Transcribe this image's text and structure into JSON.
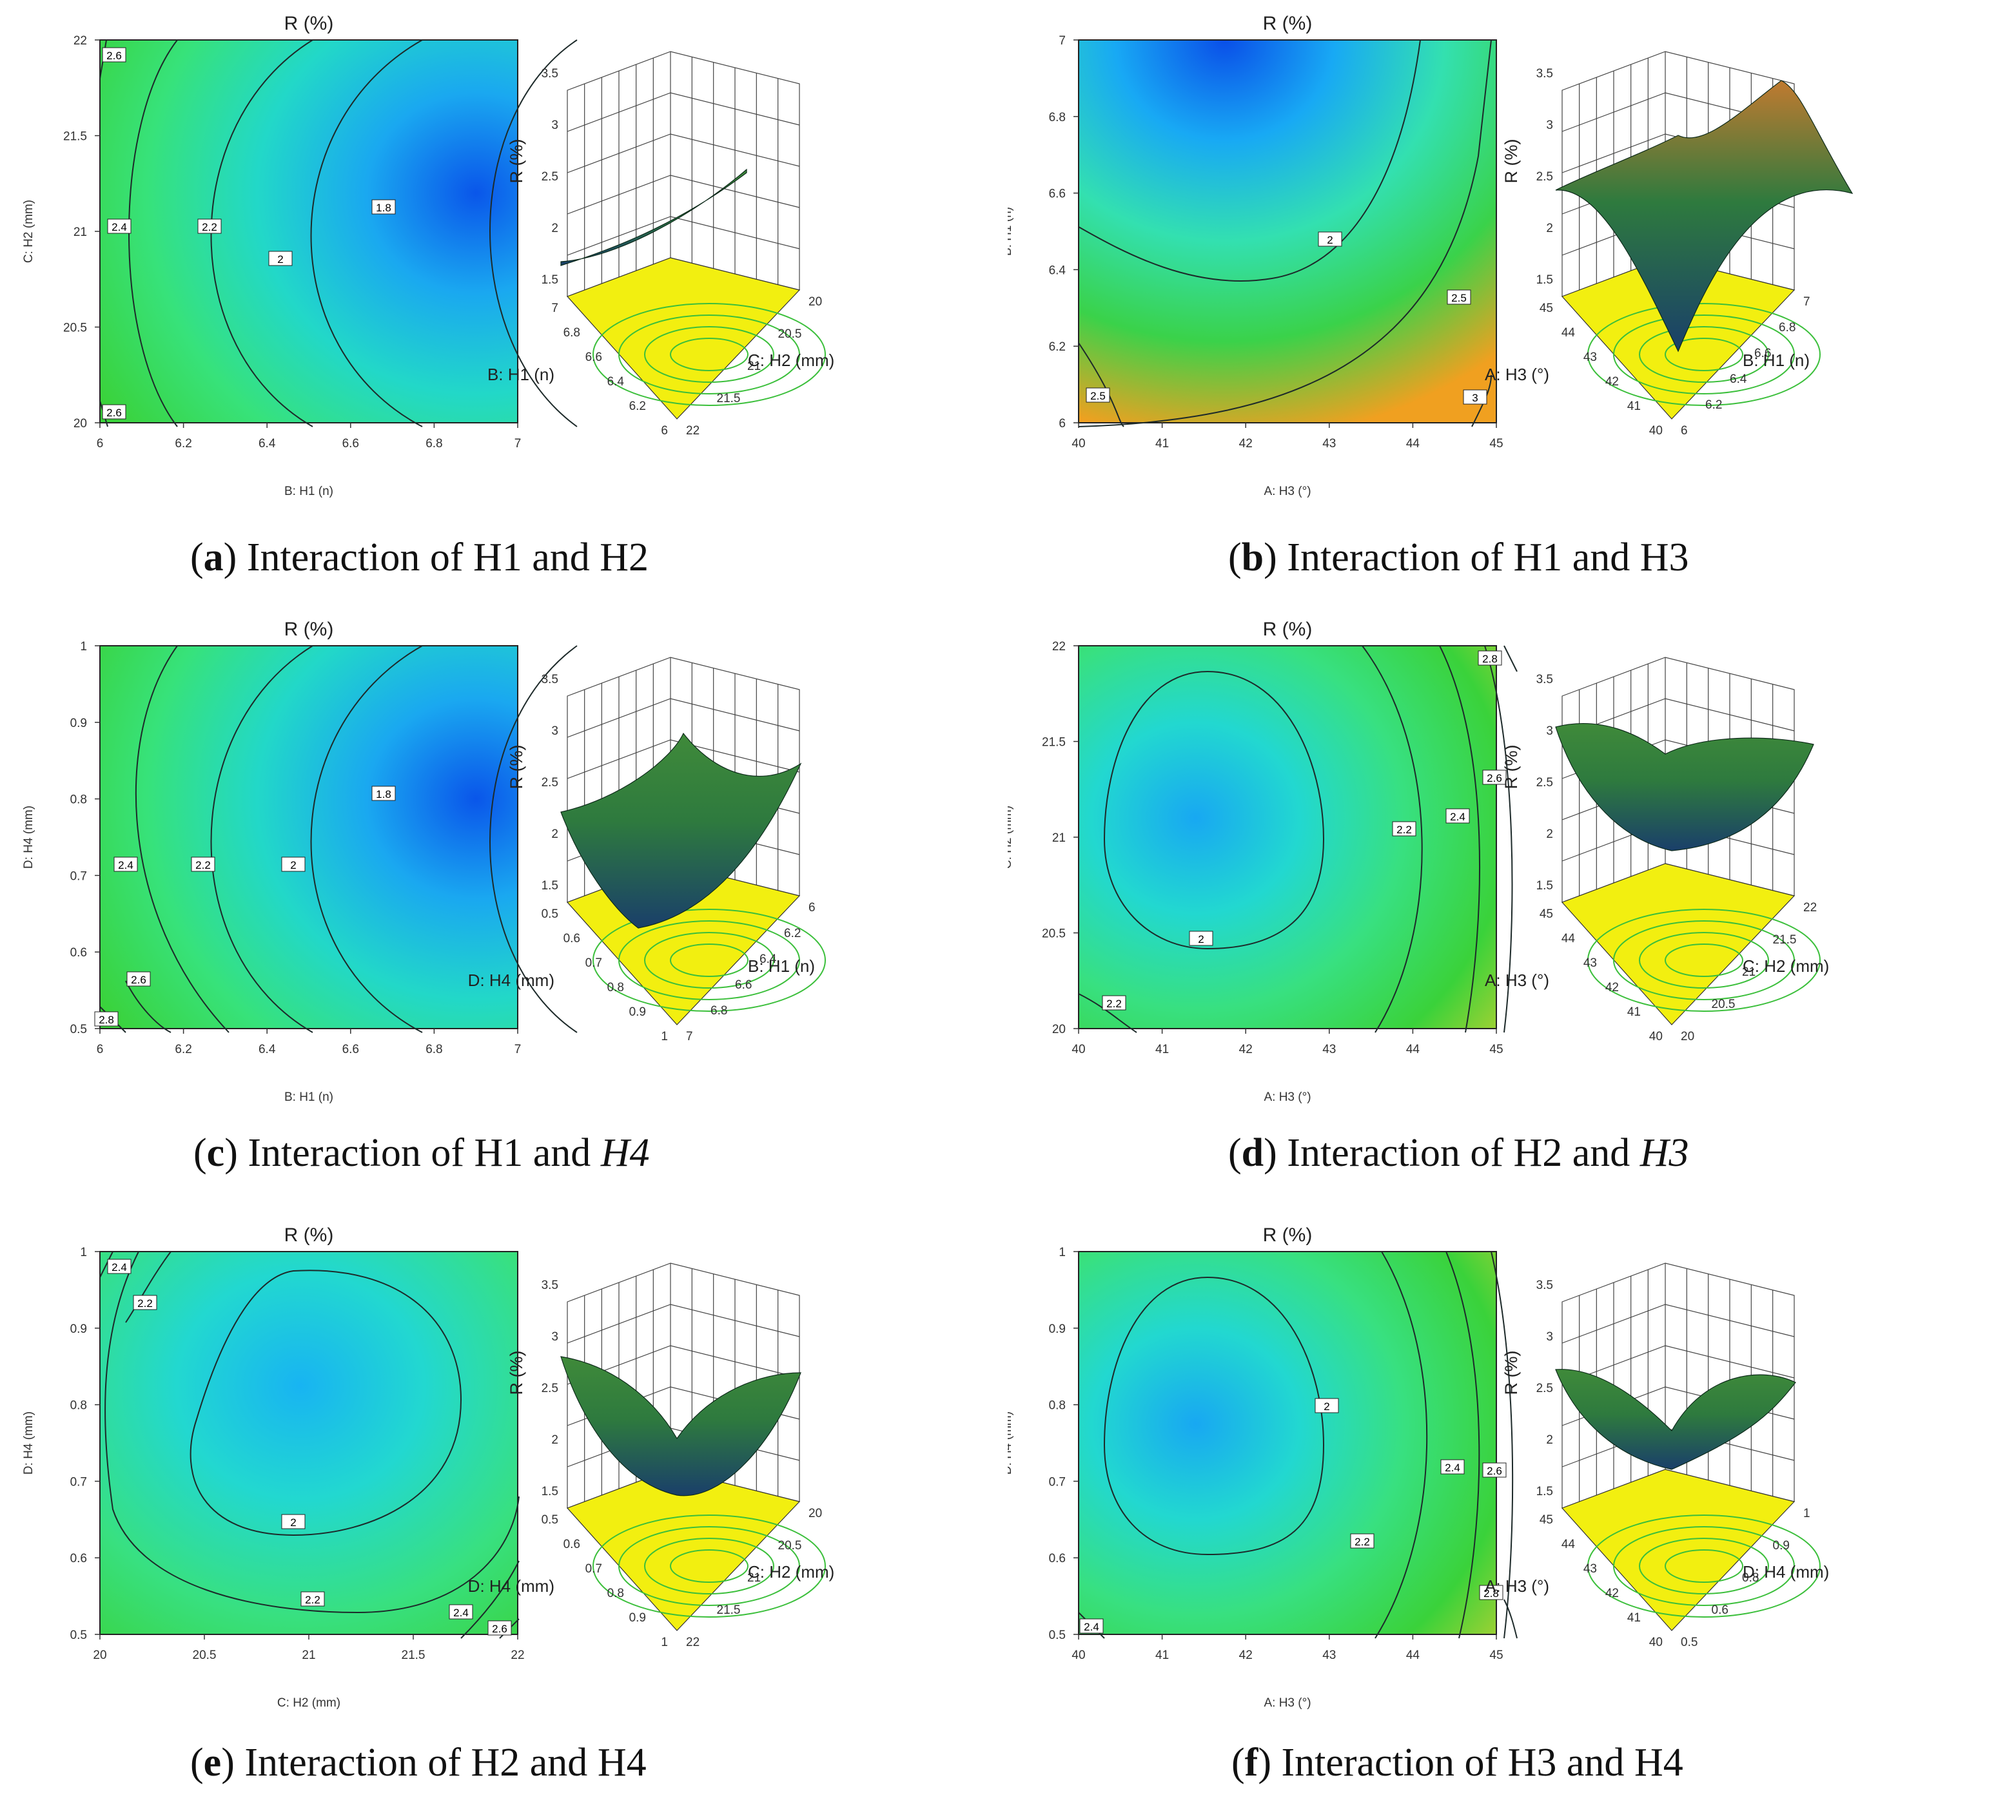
{
  "figure": {
    "panels": [
      {
        "id": "a",
        "caption": {
          "letter": "a",
          "text_before": " Interaction of H1 and ",
          "second": "H2",
          "second_italic": false
        },
        "chart_data": {
          "type": "contour",
          "title": "R (%)",
          "xlabel": "B: H1 (n)",
          "ylabel": "C: H2 (mm)",
          "xlim": [
            6,
            7
          ],
          "ylim": [
            20,
            22
          ],
          "xticks": [
            "6",
            "6.2",
            "6.4",
            "6.6",
            "6.8",
            "7"
          ],
          "yticks": [
            "20",
            "20.5",
            "21",
            "21.5",
            "22"
          ],
          "contour_levels": [
            "1.8",
            "2",
            "2.2",
            "2.4",
            "2.6",
            "2.6"
          ],
          "gradient": [
            "#3ad23a",
            "#37e27a",
            "#22d8c8",
            "#1aa8f0",
            "#0a56ea"
          ],
          "surface": {
            "zlabel": "R (%)",
            "zticks": [
              "1.5",
              "2",
              "2.5",
              "3",
              "3.5"
            ],
            "axis_left_label": "B: H1 (n)",
            "axis_left_ticks": [
              "7",
              "6.8",
              "6.6",
              "6.4",
              "6.2",
              "6"
            ],
            "axis_right_label": "C: H2 (mm)",
            "axis_right_ticks": [
              "22",
              "21.5",
              "21",
              "20.5",
              "20"
            ]
          }
        }
      },
      {
        "id": "b",
        "caption": {
          "letter": "b",
          "text_before": " Interaction of H1 and ",
          "second": "H3",
          "second_italic": false
        },
        "chart_data": {
          "type": "contour",
          "title": "R (%)",
          "xlabel": "A: H3  (°)",
          "ylabel": "B: H1 (n)",
          "xlim": [
            40,
            45
          ],
          "ylim": [
            6,
            7
          ],
          "xticks": [
            "40",
            "41",
            "42",
            "43",
            "44",
            "45"
          ],
          "yticks": [
            "6",
            "6.2",
            "6.4",
            "6.6",
            "6.8",
            "7"
          ],
          "contour_levels": [
            "2",
            "2.5",
            "2.5",
            "3"
          ],
          "gradient": [
            "#0a4fe8",
            "#18a9f4",
            "#33e0b0",
            "#3ad24a",
            "#f0a020"
          ],
          "surface": {
            "zlabel": "R (%)",
            "zticks": [
              "1.5",
              "2",
              "2.5",
              "3",
              "3.5"
            ],
            "axis_left_label": "A: H3  (°)",
            "axis_left_ticks": [
              "45",
              "44",
              "43",
              "42",
              "41",
              "40"
            ],
            "axis_right_label": "B: H1 (n)",
            "axis_right_ticks": [
              "6",
              "6.2",
              "6.4",
              "6.6",
              "6.8",
              "7"
            ]
          }
        }
      },
      {
        "id": "c",
        "caption": {
          "letter": "c",
          "text_before": " Interaction of H1 and ",
          "second": "H4",
          "second_italic": true
        },
        "chart_data": {
          "type": "contour",
          "title": "R (%)",
          "xlabel": "B: H1 (n)",
          "ylabel": "D: H4 (mm)",
          "xlim": [
            6,
            7
          ],
          "ylim": [
            0.5,
            1
          ],
          "xticks": [
            "6",
            "6.2",
            "6.4",
            "6.6",
            "6.8",
            "7"
          ],
          "yticks": [
            "0.5",
            "0.6",
            "0.7",
            "0.8",
            "0.9",
            "1"
          ],
          "contour_levels": [
            "1.8",
            "2",
            "2.2",
            "2.4",
            "2.6",
            "2.8"
          ],
          "gradient": [
            "#3ad23a",
            "#37e27a",
            "#22d8c8",
            "#1aa8f0",
            "#0a56ea"
          ],
          "surface": {
            "zlabel": "R (%)",
            "zticks": [
              "1.5",
              "2",
              "2.5",
              "3",
              "3.5"
            ],
            "axis_left_label": "D: H4 (mm)",
            "axis_left_ticks": [
              "0.5",
              "0.6",
              "0.7",
              "0.8",
              "0.9",
              "1"
            ],
            "axis_right_label": "B: H1 (n)",
            "axis_right_ticks": [
              "7",
              "6.8",
              "6.6",
              "6.4",
              "6.2",
              "6"
            ]
          }
        }
      },
      {
        "id": "d",
        "caption": {
          "letter": "d",
          "text_before": " Interaction of H2 and ",
          "second": "H3",
          "second_italic": true
        },
        "chart_data": {
          "type": "contour",
          "title": "R (%)",
          "xlabel": "A: H3  (°)",
          "ylabel": "C: H2 (mm)",
          "xlim": [
            40,
            45
          ],
          "ylim": [
            20,
            22
          ],
          "xticks": [
            "40",
            "41",
            "42",
            "43",
            "44",
            "45"
          ],
          "yticks": [
            "20",
            "20.5",
            "21",
            "21.5",
            "22"
          ],
          "contour_levels": [
            "2",
            "2.2",
            "2.2",
            "2.4",
            "2.6",
            "2.8"
          ],
          "gradient": [
            "#18a8f2",
            "#22d8d0",
            "#38e080",
            "#3ad23a",
            "#d6d030"
          ],
          "surface": {
            "zlabel": "R (%)",
            "zticks": [
              "1.5",
              "2",
              "2.5",
              "3",
              "3.5"
            ],
            "axis_left_label": "A: H3  (°)",
            "axis_left_ticks": [
              "45",
              "44",
              "43",
              "42",
              "41",
              "40"
            ],
            "axis_right_label": "C: H2 (mm)",
            "axis_right_ticks": [
              "20",
              "20.5",
              "21",
              "21.5",
              "22"
            ]
          }
        }
      },
      {
        "id": "e",
        "caption": {
          "letter": "e",
          "text_before": " Interaction of H2 and ",
          "second": "H4",
          "second_italic": false
        },
        "chart_data": {
          "type": "contour",
          "title": "R (%)",
          "xlabel": "C: H2  (mm)",
          "ylabel": "D: H4  (mm)",
          "xlim": [
            20,
            22
          ],
          "ylim": [
            0.5,
            1
          ],
          "xticks": [
            "20",
            "20.5",
            "21",
            "21.5",
            "22"
          ],
          "yticks": [
            "0.5",
            "0.6",
            "0.7",
            "0.8",
            "0.9",
            "1"
          ],
          "contour_levels": [
            "2",
            "2.2",
            "2.2",
            "2.4",
            "2.4",
            "2.6"
          ],
          "gradient": [
            "#18b4f2",
            "#22d8d0",
            "#38e080",
            "#3ad23a"
          ],
          "surface": {
            "zlabel": "R (%)",
            "zticks": [
              "1.5",
              "2",
              "2.5",
              "3",
              "3.5"
            ],
            "axis_left_label": "D: H4  (mm)",
            "axis_left_ticks": [
              "0.5",
              "0.6",
              "0.7",
              "0.8",
              "0.9",
              "1"
            ],
            "axis_right_label": "C: H2  (mm)",
            "axis_right_ticks": [
              "22",
              "21.5",
              "21",
              "20.5",
              "20"
            ]
          }
        }
      },
      {
        "id": "f",
        "caption": {
          "letter": "f",
          "text_before": " Interaction of H3 and ",
          "second": "H4",
          "second_italic": false
        },
        "chart_data": {
          "type": "contour",
          "title": "R (%)",
          "xlabel": "A: H3  (°)",
          "ylabel": "D: H4  (mm)",
          "xlim": [
            40,
            45
          ],
          "ylim": [
            0.5,
            1
          ],
          "xticks": [
            "40",
            "41",
            "42",
            "43",
            "44",
            "45"
          ],
          "yticks": [
            "0.5",
            "0.6",
            "0.7",
            "0.8",
            "0.9",
            "1"
          ],
          "contour_levels": [
            "2",
            "2.2",
            "2.4",
            "2.6",
            "2.8",
            "2.4"
          ],
          "gradient": [
            "#18a8f2",
            "#22d8d0",
            "#38e080",
            "#3ad23a",
            "#d6d030"
          ],
          "surface": {
            "zlabel": "R (%)",
            "zticks": [
              "1.5",
              "2",
              "2.5",
              "3",
              "3.5"
            ],
            "axis_left_label": "A: H3  (°)",
            "axis_left_ticks": [
              "45",
              "44",
              "43",
              "42",
              "41",
              "40"
            ],
            "axis_right_label": "D: H4  (mm)",
            "axis_right_ticks": [
              "0.5",
              "0.6",
              "0.8",
              "0.9",
              "1"
            ]
          }
        }
      }
    ]
  }
}
